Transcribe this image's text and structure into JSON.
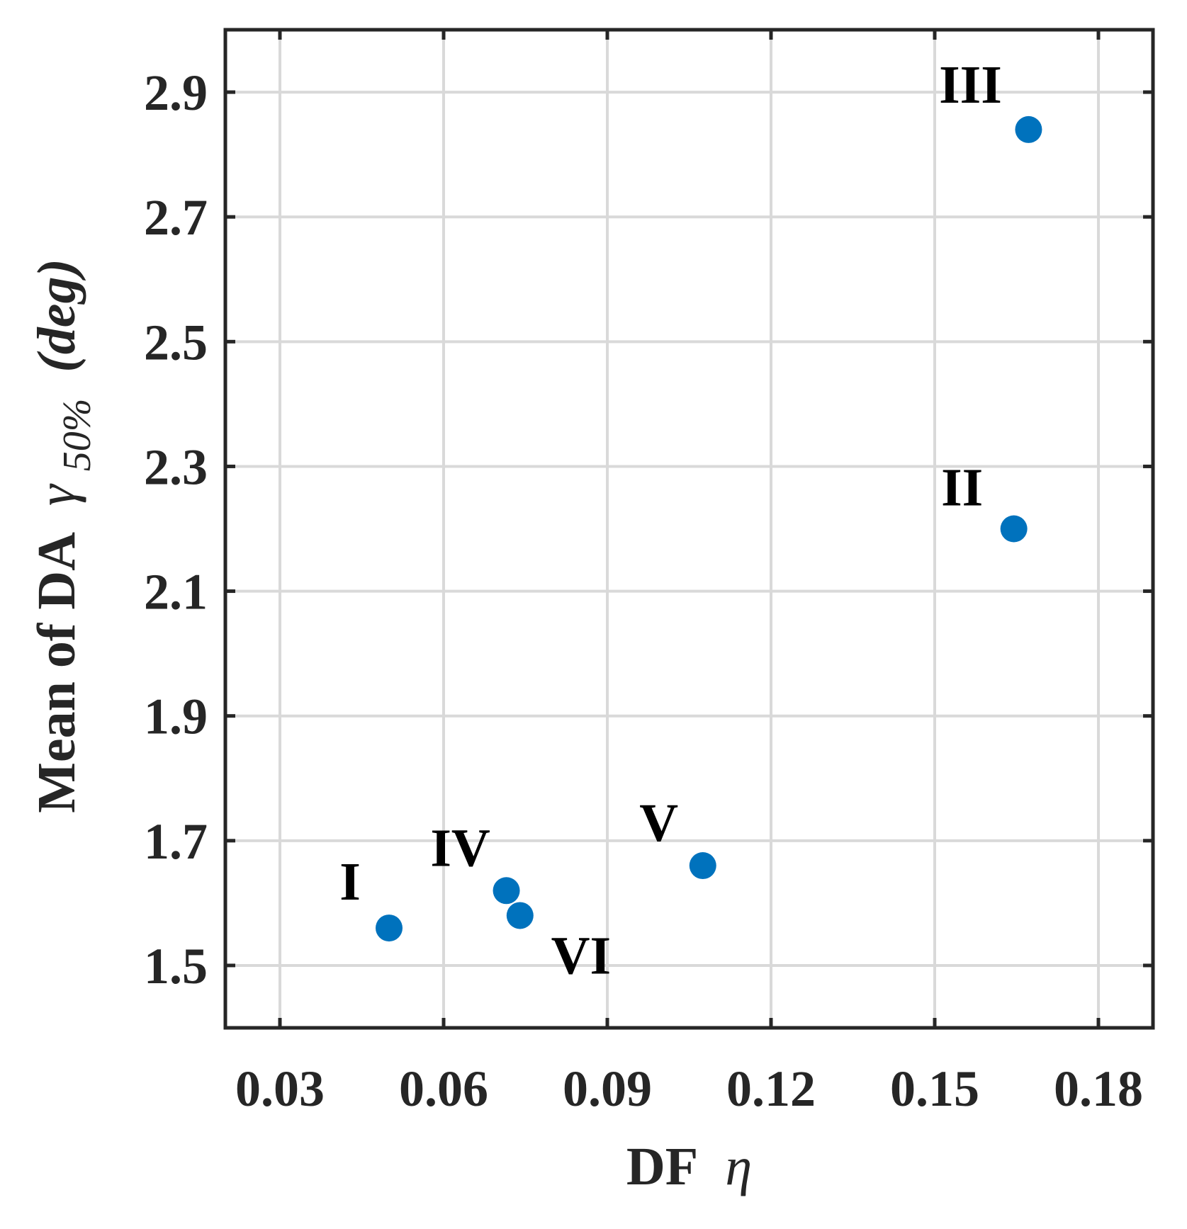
{
  "chart_data": {
    "type": "scatter",
    "xlabel": "DF",
    "xlabel_symbol": "η",
    "ylabel": "Mean of DA",
    "ylabel_symbol": "γ",
    "ylabel_subscript": "50%",
    "ylabel_unit": "(deg)",
    "xlim": [
      0.02,
      0.19
    ],
    "ylim": [
      1.4,
      3.0
    ],
    "xticks": [
      0.03,
      0.06,
      0.09,
      0.12,
      0.15,
      0.18
    ],
    "xtick_labels": [
      "0.03",
      "0.06",
      "0.09",
      "0.12",
      "0.15",
      "0.18"
    ],
    "yticks": [
      1.5,
      1.7,
      1.9,
      2.1,
      2.3,
      2.5,
      2.7,
      2.9
    ],
    "ytick_labels": [
      "1.5",
      "1.7",
      "1.9",
      "2.1",
      "2.3",
      "2.5",
      "2.7",
      "2.9"
    ],
    "grid": true,
    "marker_color": "#0072BD",
    "points": [
      {
        "label": "I",
        "x": 0.05,
        "y": 1.56
      },
      {
        "label": "II",
        "x": 0.1645,
        "y": 2.2
      },
      {
        "label": "III",
        "x": 0.1672,
        "y": 2.84
      },
      {
        "label": "IV",
        "x": 0.0715,
        "y": 1.62
      },
      {
        "label": "V",
        "x": 0.1075,
        "y": 1.66
      },
      {
        "label": "VI",
        "x": 0.074,
        "y": 1.58
      }
    ]
  }
}
